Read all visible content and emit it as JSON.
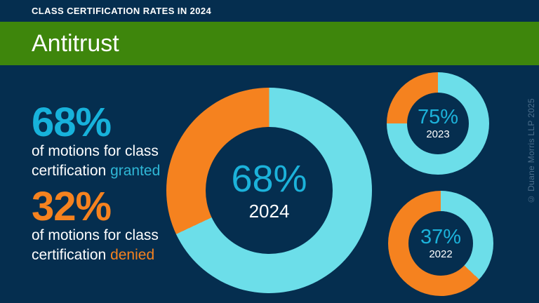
{
  "header": {
    "title": "CLASS CERTIFICATION RATES IN 2024"
  },
  "banner": {
    "label": "Antitrust"
  },
  "stats": {
    "granted": {
      "value": "68%",
      "line1": "of motions for class",
      "line2": "certification",
      "highlight": "granted"
    },
    "denied": {
      "value": "32%",
      "line1": "of motions for class",
      "line2": "certification",
      "highlight": "denied"
    }
  },
  "chart_data": [
    {
      "type": "pie",
      "title": "2024 class certification rate",
      "series": [
        {
          "name": "granted",
          "value": 68
        },
        {
          "name": "denied",
          "value": 32
        }
      ],
      "colors": [
        "#6CDEE9",
        "#F5821F"
      ],
      "center_value": "68%",
      "center_label": "2024",
      "layout": "donut, starts at 12 o'clock, clockwise, granted first"
    },
    {
      "type": "pie",
      "title": "2023 class certification rate",
      "series": [
        {
          "name": "granted",
          "value": 75
        },
        {
          "name": "denied",
          "value": 25
        }
      ],
      "colors": [
        "#6CDEE9",
        "#F5821F"
      ],
      "center_value": "75%",
      "center_label": "2023",
      "layout": "donut, starts at 12 o'clock, clockwise, granted first"
    },
    {
      "type": "pie",
      "title": "2022 class certification rate",
      "series": [
        {
          "name": "granted",
          "value": 37
        },
        {
          "name": "denied",
          "value": 63
        }
      ],
      "colors": [
        "#6CDEE9",
        "#F5821F"
      ],
      "center_value": "37%",
      "center_label": "2022",
      "layout": "donut, starts at 12 o'clock, clockwise, granted first"
    }
  ],
  "footer": {
    "copyright": "© Duane Morris LLP 2025"
  },
  "colors": {
    "background_navy": "#052E4F",
    "banner_green": "#3E860C",
    "ring_cyan": "#6CDEE9",
    "accent_cyan": "#17B2DB",
    "accent_orange": "#F5821F",
    "text_white": "#FFFFFF",
    "copyright_gray": "#4C6E8B"
  }
}
